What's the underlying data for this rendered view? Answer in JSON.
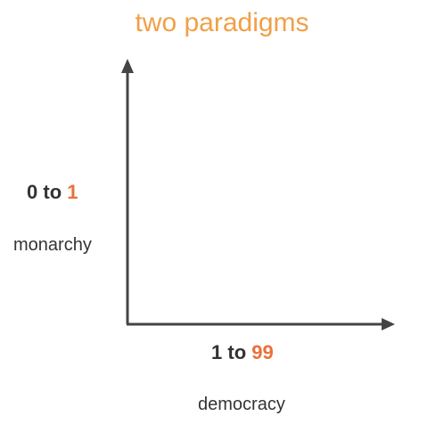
{
  "title": "two paradigms",
  "y_axis": {
    "ratio_start": "0",
    "ratio_connector": " to ",
    "ratio_end": "1",
    "caption": "monarchy"
  },
  "x_axis": {
    "ratio_start": "1",
    "ratio_connector": " to ",
    "ratio_end": "99",
    "caption": "democracy"
  },
  "colors": {
    "title": "#F0A048",
    "highlight": "#E9713A",
    "text": "#333333",
    "axis": "#444444"
  }
}
